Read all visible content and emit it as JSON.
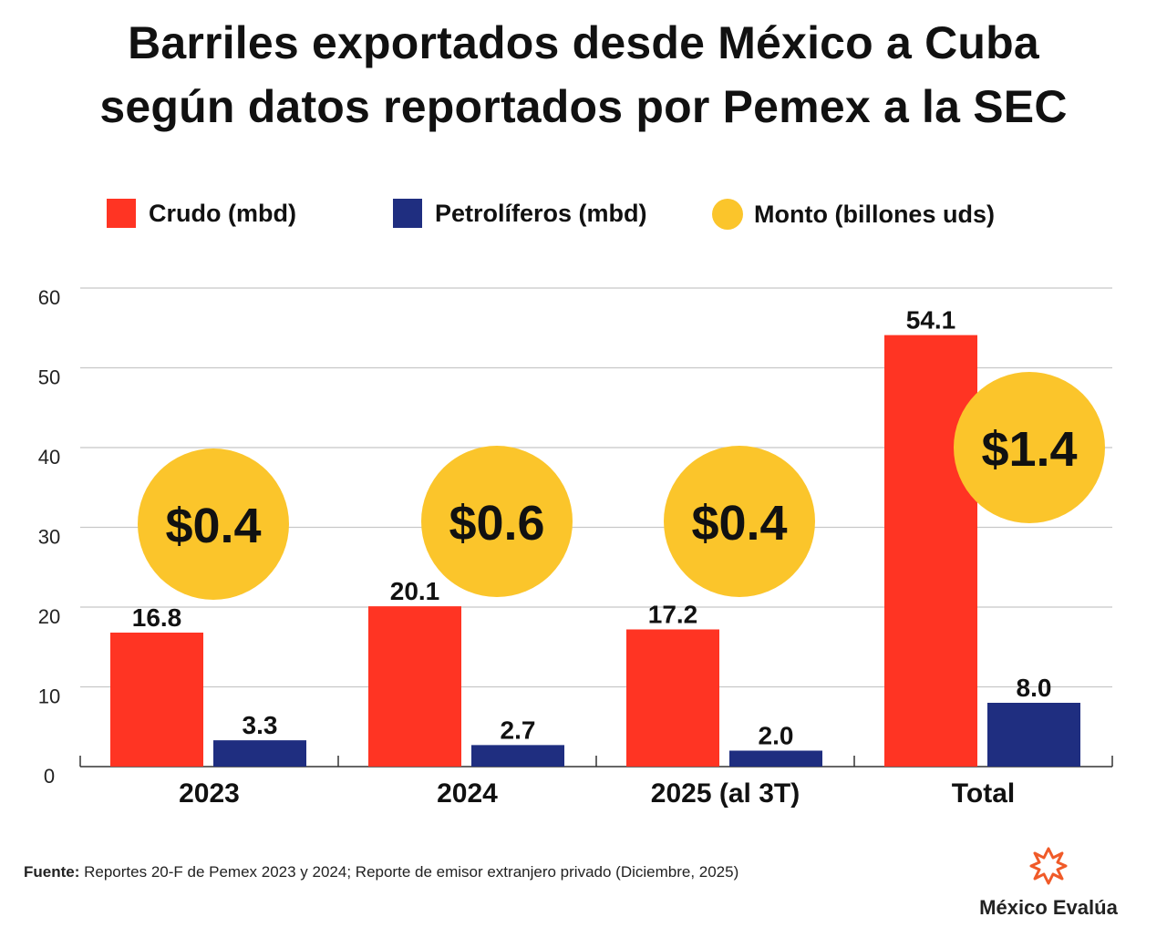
{
  "chart_data": {
    "type": "bar",
    "title": "Barriles exportados desde México a Cuba según datos reportados por Pemex a la SEC",
    "title_lines": [
      "Barriles exportados desde México a Cuba",
      "según datos reportados por Pemex a la SEC"
    ],
    "categories": [
      "2023",
      "2024",
      "2025 (al 3T)",
      "Total"
    ],
    "series": [
      {
        "name": "Crudo (mbd)",
        "color": "#ff3423",
        "values": [
          16.8,
          20.1,
          17.2,
          54.1
        ],
        "labels": [
          "16.8",
          "20.1",
          "17.2",
          "54.1"
        ]
      },
      {
        "name": "Petrolíferos (mbd)",
        "color": "#1f2e80",
        "values": [
          3.3,
          2.7,
          2.0,
          8.0
        ],
        "labels": [
          "3.3",
          "2.7",
          "2.0",
          "8.0"
        ]
      },
      {
        "name": "Monto (billones uds)",
        "color": "#fbc52b",
        "values": [
          0.4,
          0.6,
          0.4,
          1.4
        ],
        "labels": [
          "$0.4",
          "$0.6",
          "$0.4",
          "$1.4"
        ]
      }
    ],
    "ylim": [
      0,
      60
    ],
    "yticks": [
      "0",
      "10",
      "20",
      "30",
      "40",
      "50",
      "60"
    ],
    "grid": true,
    "legend_position": "top"
  },
  "footer": {
    "source_label": "Fuente:",
    "source_text": " Reportes 20-F de Pemex 2023 y 2024; Reporte de emisor extranjero privado (Diciembre, 2025)"
  },
  "logo": {
    "text": "México Evalúa"
  }
}
